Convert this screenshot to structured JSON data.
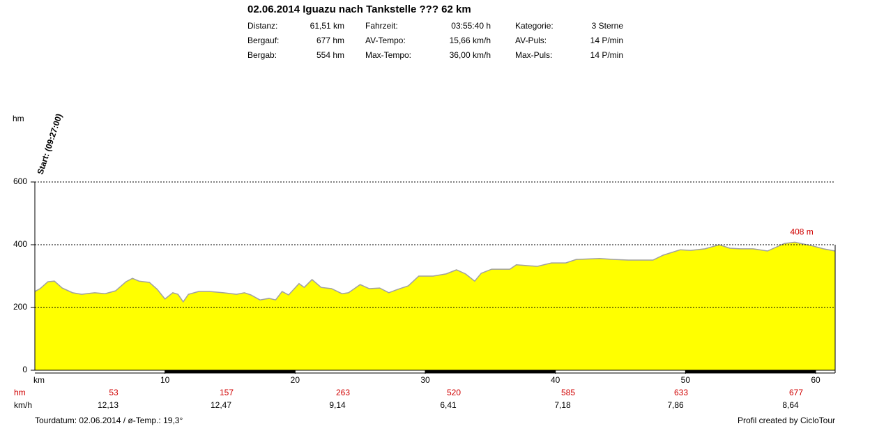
{
  "chart_data": {
    "type": "area",
    "title": "02.06.2014 Iguazu nach Tankstelle ??? 62 km",
    "stats": [
      [
        "Distanz:",
        "61,51 km",
        "Fahrzeit:",
        "03:55:40 h",
        "Kategorie:",
        "3 Sterne"
      ],
      [
        "Bergauf:",
        "677 hm",
        "AV-Tempo:",
        "15,66 km/h",
        "AV-Puls:",
        "14 P/min"
      ],
      [
        "Bergab:",
        "554 hm",
        "Max-Tempo:",
        "36,00 km/h",
        "Max-Puls:",
        "14 P/min"
      ]
    ],
    "y_label": "hm",
    "x_label": "km",
    "start_label": "Start: (09:27:00)",
    "x": [
      0,
      0.4,
      1.0,
      1.5,
      2.1,
      2.9,
      3.6,
      4.6,
      5.4,
      6.2,
      7.0,
      7.5,
      8.0,
      8.8,
      9.4,
      10.0,
      10.6,
      11.0,
      11.4,
      11.8,
      12.6,
      13.4,
      14.5,
      15.5,
      16.1,
      16.6,
      17.3,
      18.0,
      18.5,
      19.0,
      19.5,
      20.3,
      20.7,
      21.3,
      22.0,
      22.8,
      23.6,
      24.1,
      25.0,
      25.7,
      26.5,
      27.2,
      27.9,
      28.7,
      29.5,
      30.6,
      31.6,
      32.4,
      33.1,
      33.8,
      34.3,
      35.1,
      36.5,
      37.0,
      38.6,
      39.7,
      40.8,
      41.6,
      43.4,
      44.5,
      45.6,
      47.5,
      48.3,
      49.6,
      50.4,
      51.5,
      52.6,
      53.4,
      54.2,
      55.2,
      56.3,
      57.6,
      58.4,
      59.8,
      60.6,
      61.5
    ],
    "values": [
      251,
      260,
      282,
      284,
      262,
      247,
      242,
      247,
      244,
      253,
      282,
      293,
      284,
      280,
      258,
      227,
      247,
      242,
      218,
      242,
      251,
      251,
      247,
      242,
      247,
      240,
      224,
      229,
      224,
      251,
      240,
      276,
      264,
      289,
      264,
      260,
      244,
      247,
      273,
      260,
      262,
      247,
      258,
      269,
      300,
      300,
      307,
      320,
      307,
      284,
      309,
      322,
      322,
      336,
      331,
      342,
      342,
      353,
      356,
      353,
      351,
      351,
      367,
      384,
      382,
      387,
      400,
      389,
      387,
      387,
      380,
      404,
      408,
      396,
      387,
      380
    ],
    "color": "#ffff00",
    "line_color": "#a0a0a0",
    "xlim": [
      0,
      61.5
    ],
    "xticks": [
      10,
      20,
      30,
      40,
      50,
      60
    ],
    "ylim": [
      0,
      600
    ],
    "yticks": [
      0,
      200,
      400,
      600
    ],
    "grid": true,
    "max_annotation": {
      "x": 58.4,
      "value": 408,
      "label": "408 m"
    },
    "summary": {
      "hm_label": "hm",
      "kmh_label": "km/h",
      "hm": [
        53,
        157,
        263,
        520,
        585,
        633,
        677
      ],
      "kmh": [
        "12,13",
        "12,47",
        "9,14",
        "6,41",
        "7,18",
        "7,86",
        "8,64"
      ]
    },
    "footer_left": "Tourdatum: 02.06.2014  /  ø-Temp.: 19,3°",
    "footer_right": "Profil created by CicloTour"
  }
}
